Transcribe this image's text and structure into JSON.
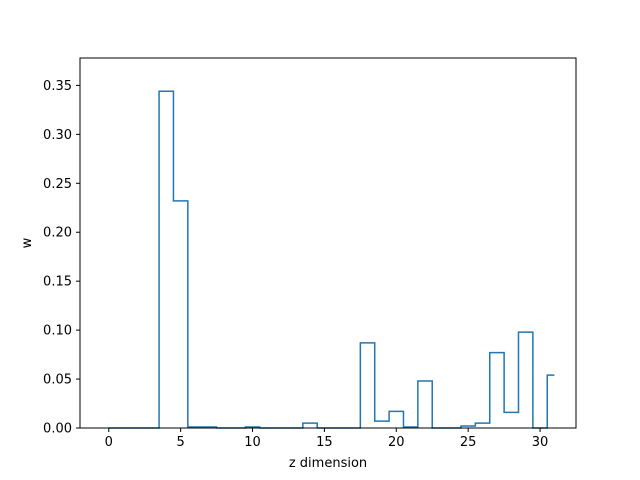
{
  "chart_data": {
    "type": "line",
    "drawstyle": "steps-mid",
    "title": "",
    "xlabel": "z dimension",
    "ylabel": "w",
    "xlim": [
      -2.0,
      32.5
    ],
    "ylim": [
      0,
      0.378
    ],
    "xticks": [
      0,
      5,
      10,
      15,
      20,
      25,
      30
    ],
    "yticks": [
      0.0,
      0.05,
      0.1,
      0.15,
      0.2,
      0.25,
      0.3,
      0.35
    ],
    "ytick_labels": [
      "0.00",
      "0.05",
      "0.10",
      "0.15",
      "0.20",
      "0.25",
      "0.30",
      "0.35"
    ],
    "grid": false,
    "color": "#1f77b4",
    "series": [
      {
        "x": [
          0,
          1,
          2,
          3,
          4,
          5,
          6,
          7,
          8,
          9,
          10,
          11,
          12,
          13,
          14,
          15,
          16,
          17,
          18,
          19,
          20,
          21,
          22,
          23,
          24,
          25,
          26,
          27,
          28,
          29,
          30,
          31
        ],
        "values": [
          0,
          0,
          0,
          0,
          0.344,
          0.232,
          0.001,
          0.001,
          0,
          0,
          0.001,
          0,
          0,
          0,
          0.005,
          0,
          0,
          0,
          0.087,
          0.007,
          0.017,
          0.001,
          0.048,
          0,
          0,
          0.002,
          0.005,
          0.077,
          0.016,
          0.098,
          0,
          0.054
        ]
      }
    ]
  }
}
